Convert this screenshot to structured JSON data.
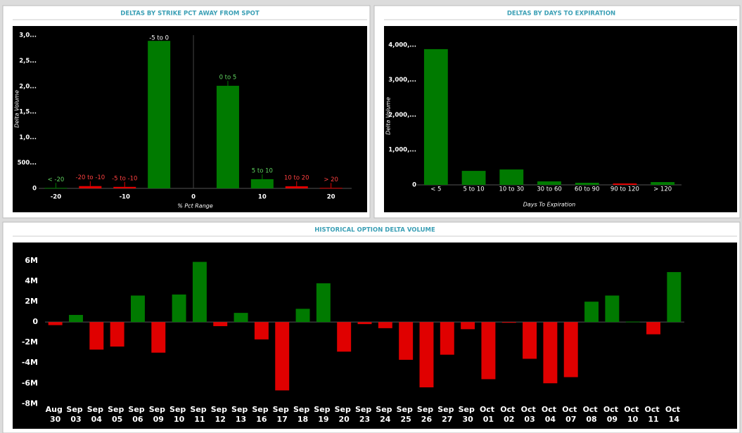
{
  "chart_data": [
    {
      "type": "bar",
      "title": "DELTAS BY STRIKE PCT AWAY FROM SPOT",
      "x_label": "% Pct Range",
      "y_label": "Delta Volume",
      "x": [
        -20,
        -15,
        -10,
        -5,
        5,
        10,
        15,
        20
      ],
      "bar_labels": [
        "< -20",
        "-20 to -10",
        "-5 to -10",
        "-5 to 0",
        "0 to 5",
        "5 to 10",
        "10 to 20",
        "> 20"
      ],
      "values": [
        10000,
        45000,
        30000,
        2890000,
        2010000,
        180000,
        41000,
        10000
      ],
      "colors": [
        "#007a00",
        "#e00000",
        "#e00000",
        "#007a00",
        "#007a00",
        "#007a00",
        "#e00000",
        "#e00000"
      ],
      "xlim": [
        -22.5,
        23
      ],
      "xticks": [
        -20,
        -10,
        0,
        10,
        20
      ],
      "ylim": [
        0,
        3140000
      ],
      "yticks": [
        {
          "value": 3000000,
          "label": "3,0..."
        },
        {
          "value": 2500000,
          "label": "2,5..."
        },
        {
          "value": 2000000,
          "label": "2,0..."
        },
        {
          "value": 1500000,
          "label": "1,5..."
        },
        {
          "value": 1000000,
          "label": "1,0..."
        },
        {
          "value": 500000,
          "label": "500..."
        },
        0
      ]
    },
    {
      "type": "bar",
      "title": "DELTAS BY DAYS TO EXPIRATION",
      "x_label": "Days To Expiration",
      "y_label": "Delta Volume",
      "categories": [
        "< 5",
        "5 to 10",
        "10 to 30",
        "30 to 60",
        "60 to 90",
        "90 to 120",
        "> 120"
      ],
      "values": [
        3880000,
        400000,
        440000,
        100000,
        60000,
        40000,
        80000
      ],
      "colors": [
        "#007a00",
        "#007a00",
        "#007a00",
        "#007a00",
        "#007a00",
        "#e00000",
        "#007a00"
      ],
      "ylim": [
        0,
        4320000
      ],
      "yticks": [
        {
          "value": 4000000,
          "label": "4,000,..."
        },
        {
          "value": 3000000,
          "label": "3,000,..."
        },
        {
          "value": 2000000,
          "label": "2,000,..."
        },
        {
          "value": 1000000,
          "label": "1,000,..."
        },
        0
      ]
    },
    {
      "type": "bar",
      "title": "HISTORICAL OPTION DELTA VOLUME",
      "categories": [
        "Aug 30",
        "Sep 03",
        "Sep 04",
        "Sep 05",
        "Sep 06",
        "Sep 09",
        "Sep 10",
        "Sep 11",
        "Sep 12",
        "Sep 13",
        "Sep 16",
        "Sep 17",
        "Sep 18",
        "Sep 19",
        "Sep 20",
        "Sep 23",
        "Sep 24",
        "Sep 25",
        "Sep 26",
        "Sep 27",
        "Sep 30",
        "Oct 01",
        "Oct 02",
        "Oct 03",
        "Oct 04",
        "Oct 07",
        "Oct 08",
        "Oct 09",
        "Oct 10",
        "Oct 11",
        "Oct 14"
      ],
      "values": [
        -300000,
        700000,
        -2700000,
        -2400000,
        2600000,
        -3000000,
        2700000,
        5900000,
        -400000,
        900000,
        -1700000,
        -6700000,
        1300000,
        3800000,
        -2900000,
        -200000,
        -600000,
        -3700000,
        -6400000,
        -3200000,
        -700000,
        -5600000,
        -50000,
        -3600000,
        -6000000,
        -5400000,
        2000000,
        2600000,
        50000,
        -1200000,
        4900000
      ],
      "positive_color": "#007a00",
      "negative_color": "#e00000",
      "ylim": [
        -8050000,
        7800000
      ],
      "yticks": [
        {
          "value": 6000000,
          "label": "6M"
        },
        {
          "value": 4000000,
          "label": "4M"
        },
        {
          "value": 2000000,
          "label": "2M"
        },
        0,
        {
          "value": -2000000,
          "label": "-2M"
        },
        {
          "value": -4000000,
          "label": "-4M"
        },
        {
          "value": -6000000,
          "label": "-6M"
        },
        {
          "value": -8000000,
          "label": "-8M"
        }
      ]
    }
  ]
}
